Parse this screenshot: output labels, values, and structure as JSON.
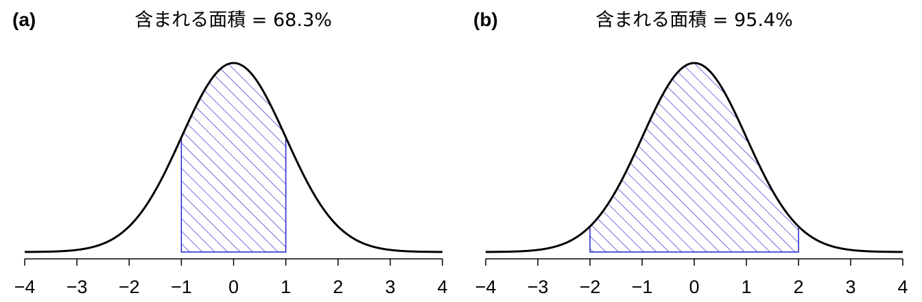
{
  "colors": {
    "curve": "#000000",
    "shade": "#2222cc",
    "axis": "#000000",
    "background": "#ffffff"
  },
  "chart_data": [
    {
      "type": "area",
      "panel_label": "(a)",
      "title": "含まれる面積 = 68.3%",
      "xlabel": "",
      "ylabel": "",
      "xlim": [
        -4,
        4
      ],
      "x_ticks": [
        -4,
        -3,
        -2,
        -1,
        0,
        1,
        2,
        3,
        4
      ],
      "tick_labels": [
        "−4",
        "−3",
        "−2",
        "−1",
        "0",
        "1",
        "2",
        "3",
        "4"
      ],
      "curve": "standard normal density",
      "shaded_interval": [
        -1,
        1
      ],
      "shaded_area_percent": 68.3,
      "shading": "diagonal hatching",
      "grid": false
    },
    {
      "type": "area",
      "panel_label": "(b)",
      "title": "含まれる面積 = 95.4%",
      "xlabel": "",
      "ylabel": "",
      "xlim": [
        -4,
        4
      ],
      "x_ticks": [
        -4,
        -3,
        -2,
        -1,
        0,
        1,
        2,
        3,
        4
      ],
      "tick_labels": [
        "−4",
        "−3",
        "−2",
        "−1",
        "0",
        "1",
        "2",
        "3",
        "4"
      ],
      "curve": "standard normal density",
      "shaded_interval": [
        -2,
        2
      ],
      "shaded_area_percent": 95.4,
      "shading": "diagonal hatching",
      "grid": false
    }
  ]
}
